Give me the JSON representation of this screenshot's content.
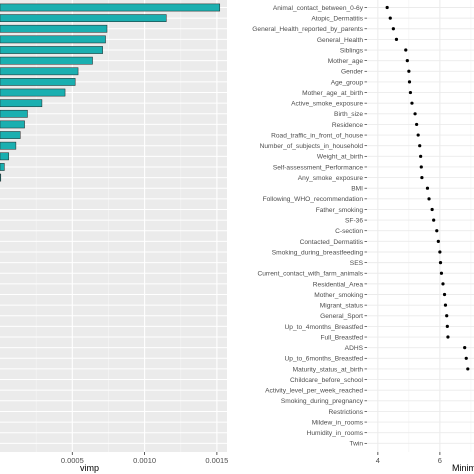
{
  "chart_data": [
    {
      "type": "bar",
      "orientation": "horizontal",
      "xlabel": "vimp",
      "xticks": [
        0.0005,
        0.001,
        0.0015
      ],
      "xtick_labels": [
        "0.0005",
        "0.0010",
        "0.0015"
      ],
      "xlim": [
        0.0,
        0.00157
      ],
      "values": [
        0.00152,
        0.00115,
        0.00074,
        0.00073,
        0.00071,
        0.00064,
        0.00054,
        0.00052,
        0.00045,
        0.00029,
        0.00019,
        0.00017,
        0.00014,
        0.00011,
        6e-05,
        3e-05,
        5e-06
      ],
      "bar_color": "#1aafb0",
      "grid": true,
      "background": "#ebebeb"
    },
    {
      "type": "scatter",
      "xlabel": "Minim",
      "xticks": [
        4,
        6
      ],
      "xtick_labels": [
        "4",
        "6"
      ],
      "xlim": [
        3.65,
        7.1
      ],
      "categories": [
        "Animal_contact_between_0-6y",
        "Atopic_Dermatitis",
        "General_Health_reported_by_parents",
        "General_Health",
        "Siblings",
        "Mother_age",
        "Gender",
        "Age_group",
        "Mother_age_at_birth",
        "Active_smoke_exposure",
        "Birth_size",
        "Residence",
        "Road_traffic_in_front_of_house",
        "Number_of_subjects_in_household",
        "Weight_at_birth",
        "Self-assessment_Performance",
        "Any_smoke_exposure",
        "BMI",
        "Following_WHO_recommendation",
        "Father_smoking",
        "SF-36",
        "C-section",
        "Contacted_Dermatitis",
        "Smoking_during_breastfeeding",
        "SES",
        "Current_contact_with_farm_animals",
        "Residential_Area",
        "Mother_smoking",
        "Migrant_status",
        "General_Sport",
        "Up_to_4months_Breastfed",
        "Full_Breastfed",
        "ADHS",
        "Up_to_6months_Breastfed",
        "Maturity_status_at_birth",
        "Childcare_before_school",
        "Activity_level_per_week_reached",
        "Smoking_during_pregnancy",
        "Restrictions",
        "Mildew_in_rooms",
        "Humidity_in_rooms",
        "Twin"
      ],
      "values": [
        4.3,
        4.4,
        4.5,
        4.6,
        4.9,
        4.95,
        5.0,
        5.02,
        5.05,
        5.1,
        5.2,
        5.25,
        5.3,
        5.35,
        5.38,
        5.4,
        5.42,
        5.6,
        5.65,
        5.75,
        5.8,
        5.9,
        5.95,
        6.0,
        6.02,
        6.05,
        6.1,
        6.15,
        6.18,
        6.22,
        6.24,
        6.26,
        6.8,
        6.85,
        6.9,
        null,
        null,
        null,
        null,
        null,
        null,
        null
      ],
      "grid": true,
      "background": "#ffffff"
    }
  ]
}
